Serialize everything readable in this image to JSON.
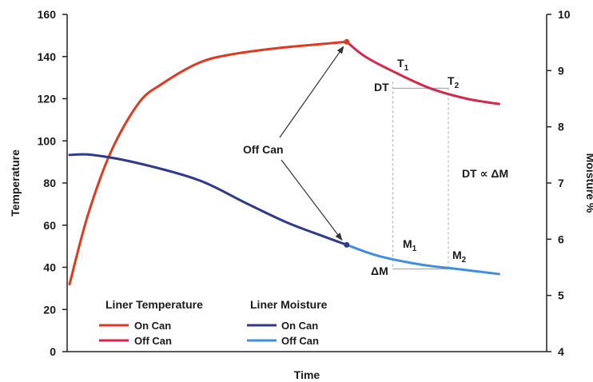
{
  "chart_data": {
    "type": "line",
    "xlabel": "Time",
    "ylabel": "Temperature",
    "y2label": "Moisture %",
    "ylim": [
      0,
      160
    ],
    "y2lim": [
      4,
      10
    ],
    "yticks": [
      "0",
      "20",
      "40",
      "60",
      "80",
      "100",
      "120",
      "140",
      "160"
    ],
    "y2ticks": [
      "4",
      "5",
      "6",
      "7",
      "8",
      "9",
      "10"
    ],
    "xlim": [
      0,
      1
    ],
    "grid": false,
    "colors": {
      "temp_on": "#e03a1e",
      "temp_off": "#d6284a",
      "moist_on": "#2e3a8c",
      "moist_off": "#3f8fde"
    },
    "series": [
      {
        "name": "On Can",
        "group": "Liner Temperature",
        "axis": "left",
        "x": [
          0.0,
          0.04,
          0.09,
          0.15,
          0.2,
          0.28,
          0.35,
          0.45,
          0.55,
          0.6
        ],
        "y": [
          32,
          65,
          95,
          118,
          127,
          137,
          141,
          144,
          146,
          147
        ]
      },
      {
        "name": "Off Can",
        "group": "Liner Temperature",
        "axis": "left",
        "x": [
          0.6,
          0.64,
          0.7,
          0.78,
          0.86,
          0.93
        ],
        "y": [
          147,
          140,
          133,
          125,
          120,
          117.5
        ]
      },
      {
        "name": "On Can",
        "group": "Liner Moisture",
        "axis": "right",
        "x": [
          0.0,
          0.05,
          0.15,
          0.28,
          0.38,
          0.47,
          0.55,
          0.6
        ],
        "y": [
          7.5,
          7.5,
          7.35,
          7.05,
          6.65,
          6.3,
          6.05,
          5.9
        ]
      },
      {
        "name": "Off Can",
        "group": "Liner Moisture",
        "axis": "right",
        "x": [
          0.6,
          0.67,
          0.76,
          0.84,
          0.93
        ],
        "y": [
          5.9,
          5.7,
          5.55,
          5.47,
          5.38
        ]
      }
    ],
    "legend": {
      "placement": "bottom-left",
      "groups": [
        "Liner Temperature",
        "Liner Moisture"
      ]
    },
    "annotations": {
      "off_can": "Off Can",
      "dt": "DT",
      "t1": "T",
      "t1_sub": "1",
      "t2": "T",
      "t2_sub": "2",
      "dm": "ΔM",
      "m1": "M",
      "m1_sub": "1",
      "m2": "M",
      "m2_sub": "2",
      "relation": "DT  ∝ ΔM",
      "t1_x": 0.7,
      "t2_x": 0.82,
      "dt_temp": 125,
      "dm_moist": 5.47
    }
  }
}
